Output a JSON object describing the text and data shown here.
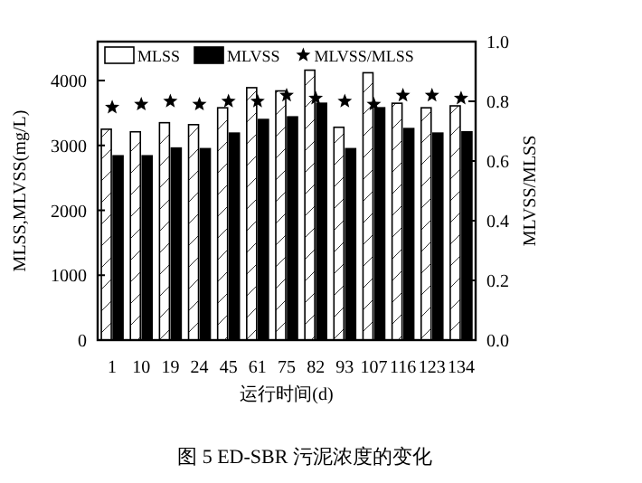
{
  "chart_data": {
    "type": "bar",
    "title": "图 5  ED-SBR 污泥浓度的变化",
    "xlabel": "运行时间(d)",
    "ylabel": "MLSS,MLVSS(mg/L)",
    "y2label": "MLVSS/MLSS",
    "categories": [
      "1",
      "10",
      "19",
      "24",
      "45",
      "61",
      "75",
      "82",
      "93",
      "107",
      "116",
      "123",
      "134"
    ],
    "series": [
      {
        "name": "MLSS",
        "color": "#ffffff",
        "values": [
          3250,
          3210,
          3350,
          3320,
          3580,
          3890,
          3840,
          4160,
          3280,
          4120,
          3650,
          3580,
          3610
        ]
      },
      {
        "name": "MLVSS",
        "color": "#000000",
        "values": [
          2840,
          2840,
          2960,
          2950,
          3190,
          3400,
          3440,
          3650,
          2950,
          3580,
          3260,
          3190,
          3210
        ]
      },
      {
        "name": "MLVSS/MLSS",
        "type": "scatter",
        "axis": "y2",
        "color": "#000000",
        "values": [
          0.78,
          0.79,
          0.8,
          0.79,
          0.8,
          0.8,
          0.82,
          0.81,
          0.8,
          0.79,
          0.82,
          0.82,
          0.81
        ]
      }
    ],
    "ylim": [
      0,
      4600
    ],
    "yticks": [
      0,
      1000,
      2000,
      3000,
      4000
    ],
    "y2lim": [
      0,
      1.0
    ],
    "y2ticks": [
      {
        "value": 0,
        "label": "0.0"
      },
      0.2,
      0.4,
      0.6,
      0.8,
      {
        "value": 1,
        "label": "1.0"
      }
    ],
    "legend": "top",
    "marker": "star"
  }
}
